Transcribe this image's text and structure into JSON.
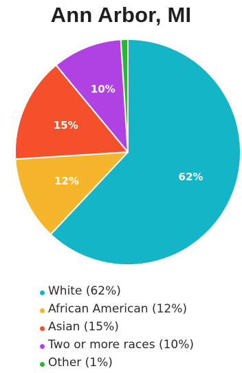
{
  "chart_data": {
    "type": "pie",
    "title": "Ann Arbor, MI",
    "slices": [
      {
        "label": "White (62%)",
        "name": "White",
        "value": 62,
        "display": "62%",
        "color": "#13b5c6"
      },
      {
        "label": "African American (12%)",
        "name": "African American",
        "value": 12,
        "display": "12%",
        "color": "#f6b62b"
      },
      {
        "label": "Asian (15%)",
        "name": "Asian",
        "value": 15,
        "display": "15%",
        "color": "#f4502b"
      },
      {
        "label": "Two or more races (10%)",
        "name": "Two or more races",
        "value": 10,
        "display": "10%",
        "color": "#b042e4"
      },
      {
        "label": "Other (1%)",
        "name": "Other",
        "value": 1,
        "display": "",
        "color": "#27b53a"
      }
    ],
    "legend_position": "bottom-left",
    "start_angle_deg": 0,
    "direction": "clockwise"
  }
}
